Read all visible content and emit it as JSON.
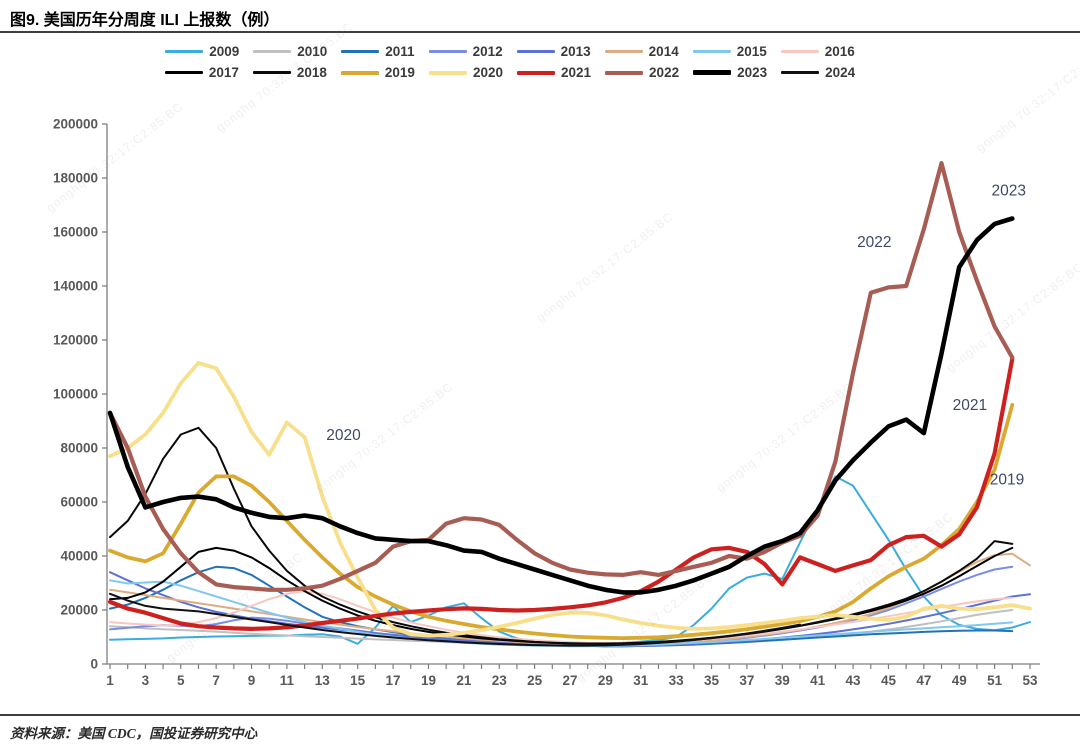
{
  "page": {
    "title": "图9. 美国历年分周度 ILI 上报数（例）",
    "source": "资料来源：美国 CDC，国投证券研究中心",
    "watermark_text": "gonghq 70:32:17:C2:85:BC"
  },
  "colors": {
    "axis": "#7f7f7f",
    "tick_label": "#595959",
    "legend_label": "#3b3b3b",
    "annotation": "#3e4a66",
    "rule": "#3f3f3f"
  },
  "chart_data": {
    "type": "line",
    "title": "美国历年分周度 ILI 上报数（例）",
    "xlabel": "",
    "ylabel": "",
    "x_min": 1,
    "x_max": 53,
    "x_labeled_ticks": [
      1,
      3,
      5,
      7,
      9,
      11,
      13,
      15,
      17,
      19,
      21,
      23,
      25,
      27,
      29,
      31,
      33,
      35,
      37,
      39,
      41,
      43,
      45,
      47,
      49,
      51,
      53
    ],
    "ylim": [
      0,
      200000
    ],
    "y_tick_step": 20000,
    "grid": false,
    "legend_position": "top",
    "series": [
      {
        "name": "2009",
        "color": "#3bacde",
        "width": 2,
        "values": [
          9000,
          9200,
          9300,
          9500,
          9800,
          10000,
          10200,
          10300,
          10400,
          10500,
          10500,
          10800,
          11000,
          10200,
          7500,
          13500,
          21500,
          15500,
          18000,
          21000,
          22500,
          17000,
          12000,
          9500,
          7800,
          7200,
          7000,
          7000,
          7400,
          7800,
          8300,
          8900,
          10000,
          14500,
          20500,
          28000,
          32000,
          33500,
          31500,
          45000,
          58000,
          69500,
          66000,
          56000,
          46000,
          35000,
          25000,
          18000,
          14500,
          13000,
          12500,
          13500,
          15500
        ]
      },
      {
        "name": "2010",
        "color": "#c1bfbf",
        "width": 2,
        "values": [
          14000,
          13600,
          13200,
          12900,
          12600,
          12300,
          12000,
          11600,
          11200,
          10900,
          10600,
          10300,
          10000,
          9700,
          9400,
          9100,
          8900,
          8600,
          8400,
          8100,
          7900,
          7700,
          7500,
          7300,
          7100,
          6900,
          6800,
          6700,
          6600,
          6600,
          6700,
          6800,
          7000,
          7200,
          7500,
          7800,
          8100,
          8500,
          9000,
          9500,
          10000,
          10600,
          11300,
          12000,
          12800,
          13700,
          14700,
          15800,
          17000,
          18200,
          19200,
          20000
        ]
      },
      {
        "name": "2011",
        "color": "#2273b5",
        "width": 2,
        "values": [
          20500,
          22000,
          24500,
          27500,
          31000,
          34000,
          36000,
          35500,
          33000,
          29000,
          25000,
          21000,
          17500,
          15500,
          14000,
          12800,
          11800,
          10900,
          10100,
          9400,
          8900,
          8400,
          7900,
          7500,
          7200,
          7000,
          6800,
          6700,
          6600,
          6600,
          6700,
          6800,
          7000,
          7200,
          7500,
          7800,
          8200,
          8600,
          9000,
          9400,
          9800,
          10200,
          10600,
          11000,
          11300,
          11600,
          11900,
          12100,
          12300,
          12400,
          12400,
          12200
        ]
      },
      {
        "name": "2012",
        "color": "#7a8ce8",
        "width": 2,
        "values": [
          12800,
          13400,
          14000,
          14400,
          14200,
          13900,
          14800,
          16200,
          17200,
          16800,
          16000,
          15000,
          14000,
          13200,
          12400,
          11500,
          10700,
          10000,
          9400,
          8900,
          8500,
          8100,
          7700,
          7400,
          7100,
          6900,
          6800,
          6700,
          6700,
          6800,
          7000,
          7200,
          7500,
          7900,
          8400,
          9000,
          9700,
          10500,
          11400,
          12400,
          13500,
          14800,
          16300,
          18000,
          20000,
          22500,
          25000,
          27800,
          30500,
          33000,
          35000,
          36000
        ]
      },
      {
        "name": "2013",
        "color": "#5b71d6",
        "width": 2,
        "values": [
          34000,
          31000,
          28000,
          25500,
          23000,
          21000,
          19300,
          18000,
          16800,
          15800,
          14900,
          14100,
          13400,
          12700,
          12100,
          11400,
          10800,
          10200,
          9600,
          9100,
          8700,
          8300,
          7900,
          7500,
          7200,
          7000,
          6800,
          6700,
          6600,
          6600,
          6700,
          6900,
          7100,
          7400,
          7800,
          8200,
          8700,
          9200,
          9800,
          10400,
          11100,
          11900,
          12800,
          13800,
          14900,
          16100,
          17400,
          18800,
          20300,
          21900,
          23500,
          25000,
          25800
        ]
      },
      {
        "name": "2014",
        "color": "#dcad82",
        "width": 2,
        "values": [
          27500,
          26500,
          25500,
          24500,
          23500,
          22500,
          21500,
          20500,
          19500,
          18500,
          17500,
          16500,
          15500,
          14600,
          13700,
          12900,
          12100,
          11400,
          10700,
          10100,
          9500,
          9000,
          8600,
          8200,
          7900,
          7600,
          7400,
          7300,
          7200,
          7200,
          7300,
          7500,
          7800,
          8200,
          8700,
          9300,
          10000,
          10800,
          11700,
          12700,
          13900,
          15200,
          16700,
          18500,
          20800,
          23500,
          26800,
          30500,
          34200,
          37800,
          40300,
          40800,
          36500
        ]
      },
      {
        "name": "2015",
        "color": "#82c7ee",
        "width": 2,
        "values": [
          31000,
          29800,
          30200,
          30500,
          29000,
          27000,
          25000,
          23000,
          21000,
          19000,
          17200,
          15600,
          14200,
          13000,
          11900,
          10900,
          10100,
          9400,
          8800,
          8300,
          7900,
          7500,
          7200,
          7000,
          6800,
          6700,
          6600,
          6600,
          6700,
          6800,
          7000,
          7200,
          7500,
          7800,
          8100,
          8500,
          8900,
          9300,
          9700,
          10100,
          10600,
          11000,
          11500,
          11900,
          12400,
          12800,
          13200,
          13600,
          14000,
          14400,
          14900,
          15400
        ]
      },
      {
        "name": "2016",
        "color": "#f5c8c2",
        "width": 2,
        "values": [
          15500,
          15000,
          14600,
          14300,
          14600,
          15500,
          17000,
          19000,
          21500,
          24000,
          26000,
          27000,
          26000,
          24000,
          21500,
          19200,
          17200,
          15400,
          14000,
          12700,
          11600,
          10700,
          9900,
          9300,
          8800,
          8400,
          8100,
          7900,
          7800,
          7800,
          7900,
          8100,
          8400,
          8800,
          9300,
          9900,
          10500,
          11200,
          12000,
          12800,
          13700,
          14600,
          15600,
          16600,
          17700,
          18800,
          20000,
          21100,
          22200,
          23200,
          24000,
          24500
        ]
      },
      {
        "name": "2017",
        "color": "#000000",
        "width": 2,
        "values": [
          24000,
          24500,
          26500,
          30500,
          36000,
          41500,
          43000,
          42000,
          39500,
          35500,
          31000,
          27000,
          23500,
          20500,
          18000,
          16000,
          14400,
          13000,
          11900,
          11000,
          10200,
          9500,
          9000,
          8500,
          8100,
          7800,
          7600,
          7500,
          7500,
          7600,
          7800,
          8100,
          8500,
          9000,
          9600,
          10300,
          11100,
          12000,
          13000,
          14100,
          15300,
          16600,
          18000,
          19600,
          21400,
          23500,
          26000,
          29000,
          32500,
          36300,
          40000,
          43000
        ]
      },
      {
        "name": "2018",
        "color": "#0a0a0a",
        "width": 2,
        "values": [
          47000,
          53000,
          63000,
          76000,
          85000,
          87500,
          80000,
          65000,
          51000,
          42000,
          34500,
          29000,
          25000,
          22000,
          19500,
          17300,
          15500,
          14000,
          12700,
          11600,
          10700,
          9900,
          9200,
          8700,
          8200,
          7900,
          7700,
          7600,
          7600,
          7700,
          7900,
          8200,
          8600,
          9100,
          9700,
          10400,
          11200,
          12100,
          13100,
          14200,
          15500,
          16900,
          18400,
          20100,
          22000,
          24200,
          27000,
          30500,
          34500,
          39000,
          45500,
          44500
        ]
      },
      {
        "name": "2019",
        "color": "#d9a930",
        "width": 3.8,
        "values": [
          42000,
          39500,
          38000,
          41000,
          52000,
          63500,
          69500,
          69500,
          66000,
          60000,
          53000,
          46000,
          39500,
          33500,
          28500,
          25000,
          22000,
          19500,
          17500,
          16000,
          14800,
          13700,
          12800,
          12000,
          11300,
          10700,
          10200,
          9900,
          9700,
          9600,
          9700,
          9900,
          10300,
          10800,
          11400,
          12100,
          12900,
          13800,
          14800,
          15900,
          17500,
          19500,
          23000,
          28000,
          32500,
          36000,
          39000,
          44000,
          50000,
          60000,
          72000,
          96000
        ]
      },
      {
        "name": "2020",
        "color": "#f8df8b",
        "width": 3.8,
        "values": [
          77000,
          80000,
          85000,
          93000,
          104000,
          111500,
          109500,
          99000,
          86000,
          77500,
          89500,
          84000,
          62000,
          45000,
          32000,
          20000,
          13500,
          11000,
          10500,
          10800,
          11500,
          12500,
          13800,
          15200,
          16800,
          18200,
          19000,
          19000,
          18000,
          16500,
          15200,
          14200,
          13400,
          13000,
          13200,
          13700,
          14400,
          15200,
          16000,
          17000,
          17600,
          18100,
          17500,
          16800,
          16300,
          17500,
          20500,
          21500,
          20500,
          20300,
          21000,
          21800,
          20500
        ]
      },
      {
        "name": "2021",
        "color": "#cd2120",
        "width": 4.2,
        "values": [
          23000,
          20500,
          19000,
          17000,
          15000,
          14000,
          13500,
          13200,
          13000,
          13200,
          13600,
          14300,
          15200,
          16000,
          16800,
          17800,
          18700,
          19300,
          19800,
          20300,
          20600,
          20400,
          20000,
          19800,
          20000,
          20400,
          21000,
          21700,
          22800,
          24500,
          27000,
          30500,
          35000,
          39500,
          42500,
          43000,
          41500,
          37000,
          29500,
          39500,
          37000,
          34500,
          36500,
          38500,
          44000,
          47000,
          47500,
          43500,
          48000,
          58000,
          78000,
          113000
        ]
      },
      {
        "name": "2022",
        "color": "#a85d54",
        "width": 4.2,
        "values": [
          93000,
          80000,
          62000,
          50000,
          41000,
          34000,
          29500,
          28500,
          28000,
          27500,
          27500,
          28000,
          29000,
          31500,
          34500,
          37500,
          43500,
          45500,
          46000,
          52000,
          54000,
          53500,
          51500,
          46000,
          41000,
          37500,
          35000,
          33800,
          33200,
          33000,
          34000,
          33000,
          34500,
          36000,
          37500,
          40000,
          39000,
          41500,
          45000,
          47500,
          55000,
          75000,
          108000,
          137500,
          139500,
          140000,
          161000,
          185500,
          160000,
          142000,
          125000,
          113500
        ]
      },
      {
        "name": "2023",
        "color": "#000000",
        "width": 4.6,
        "values": [
          93000,
          73000,
          58000,
          60000,
          61500,
          62000,
          61000,
          58000,
          56000,
          54500,
          54000,
          55000,
          54000,
          51000,
          48500,
          46500,
          46000,
          45500,
          45500,
          44000,
          42000,
          41500,
          39000,
          37000,
          35000,
          33000,
          31000,
          29000,
          27500,
          26500,
          26500,
          27500,
          29000,
          31000,
          33500,
          36000,
          40000,
          43500,
          45500,
          48500,
          57000,
          68000,
          75500,
          82000,
          88000,
          90500,
          85500,
          115000,
          147000,
          157000,
          163000,
          165000
        ]
      },
      {
        "name": "2024",
        "color": "#111111",
        "width": 2,
        "values": [
          26000,
          23500,
          21500,
          20500,
          20000,
          19500,
          18500,
          17500,
          16500,
          15500,
          14500,
          13500,
          12600,
          11800,
          11100,
          10400,
          9800,
          9300,
          8800,
          8400,
          8000,
          7700,
          7400,
          7200,
          7000,
          6900,
          6800,
          6800,
          6900,
          7100,
          7400,
          7800,
          8300,
          8900,
          9600,
          10400,
          11300,
          12300,
          13400,
          14600
        ]
      }
    ],
    "annotations": [
      {
        "text": "2020",
        "week": 14.2,
        "value": 83000
      },
      {
        "text": "2022",
        "week": 44.2,
        "value": 154500
      },
      {
        "text": "2023",
        "week": 51.8,
        "value": 173500
      },
      {
        "text": "2021",
        "week": 49.6,
        "value": 94000
      },
      {
        "text": "2019",
        "week": 51.7,
        "value": 66500
      }
    ]
  }
}
